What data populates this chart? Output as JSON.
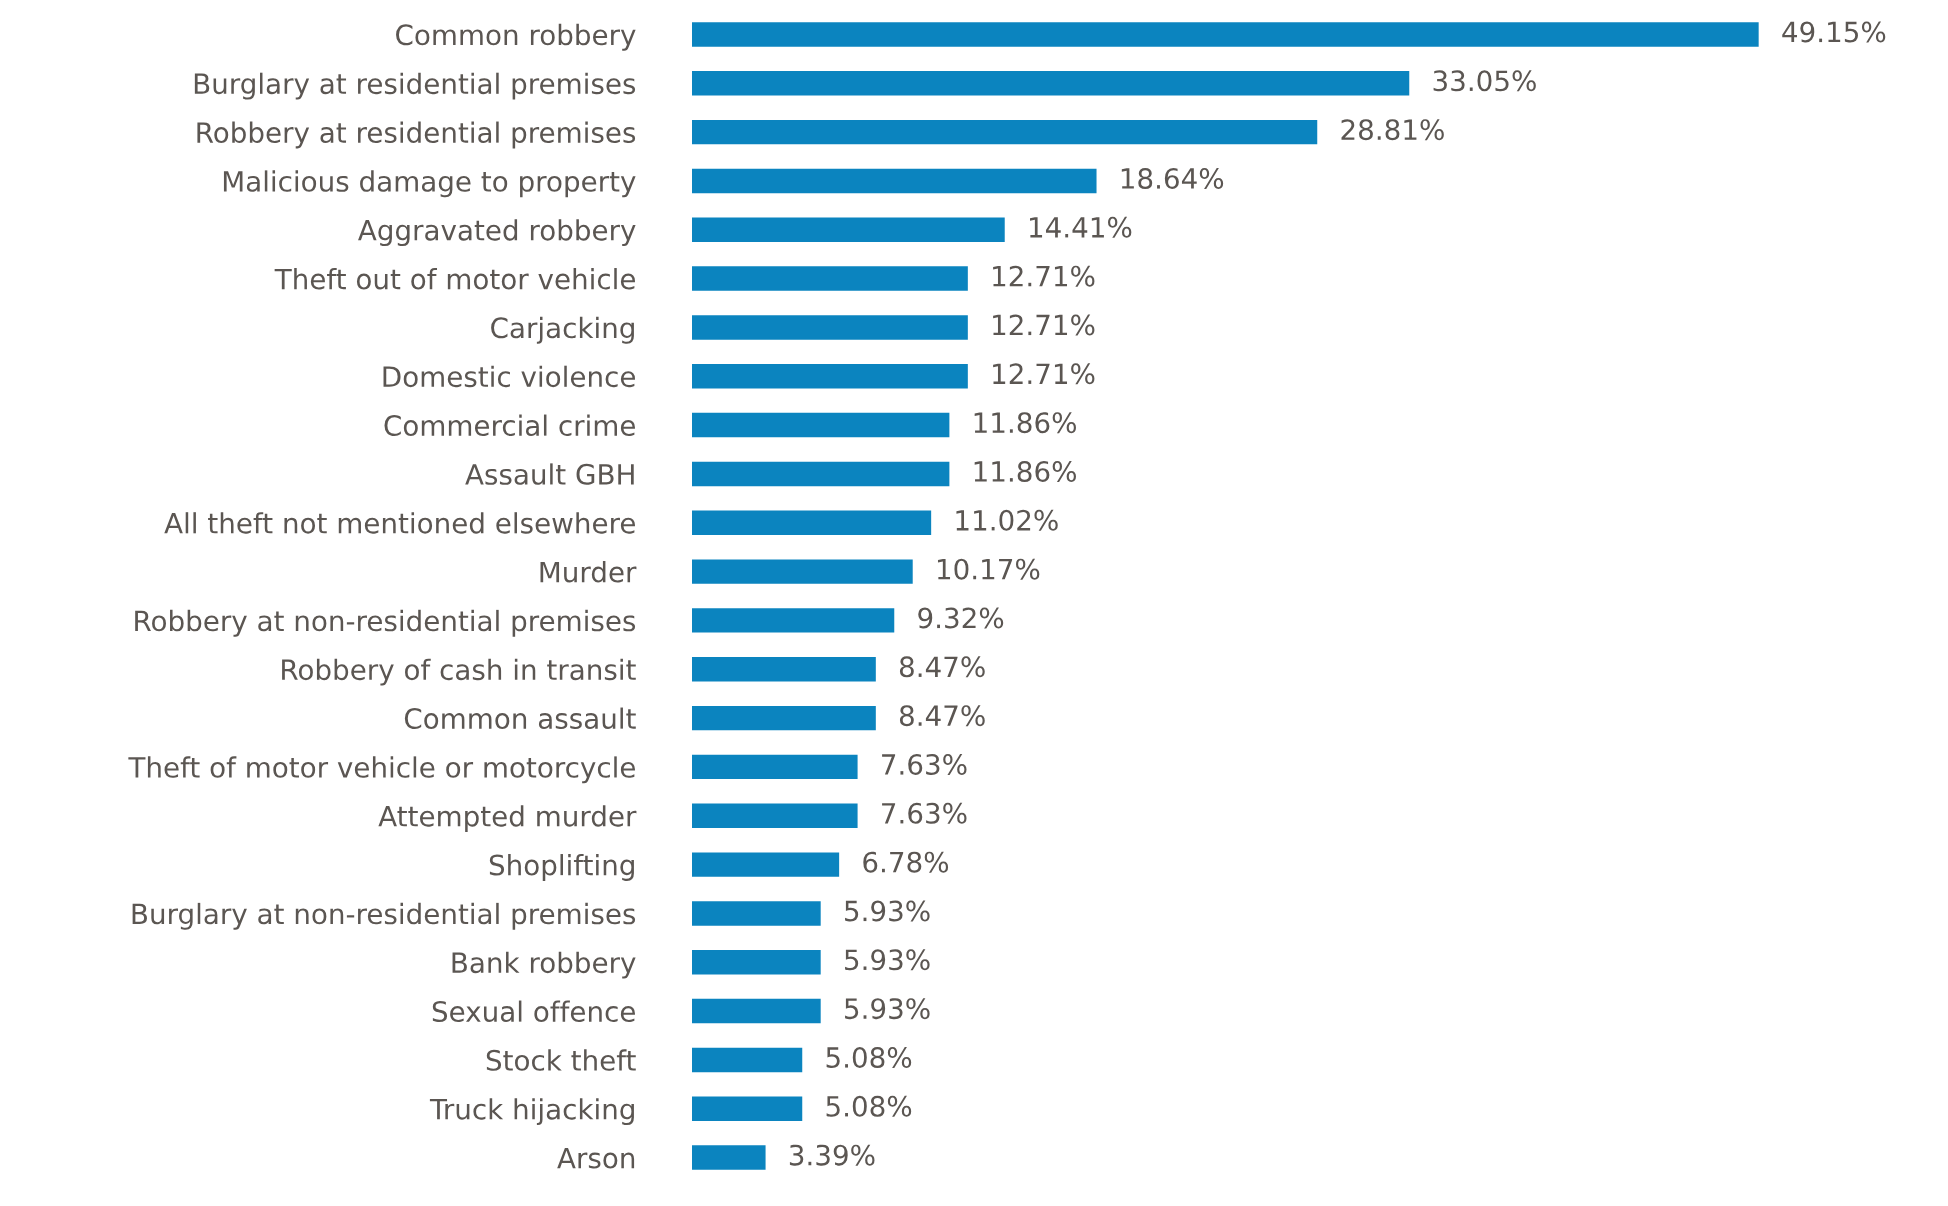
{
  "chart_data": {
    "type": "bar",
    "orientation": "horizontal",
    "tick_labels": "y",
    "color": "#0b84bf",
    "categories": [
      "Common robbery",
      "Burglary at residential premises",
      "Robbery at residential premises",
      "Malicious damage to property",
      "Aggravated robbery",
      "Theft out of motor vehicle",
      "Carjacking",
      "Domestic violence",
      "Commercial crime",
      "Assault GBH",
      "All theft not mentioned elsewhere",
      "Murder",
      "Robbery at non-residential premises",
      "Robbery of cash in transit",
      "Common assault",
      "Theft of motor vehicle or motorcycle",
      "Attempted murder",
      "Shoplifting",
      "Burglary at non-residential premises",
      "Bank robbery",
      "Sexual offence",
      "Stock theft",
      "Truck hijacking",
      "Arson"
    ],
    "values": [
      49.15,
      33.05,
      28.81,
      18.64,
      14.41,
      12.71,
      12.71,
      12.71,
      11.86,
      11.86,
      11.02,
      10.17,
      9.32,
      8.47,
      8.47,
      7.63,
      7.63,
      6.78,
      5.93,
      5.93,
      5.93,
      5.08,
      5.08,
      3.39
    ],
    "value_labels": [
      "49.15%",
      "33.05%",
      "28.81%",
      "18.64%",
      "14.41%",
      "12.71%",
      "12.71%",
      "12.71%",
      "11.86%",
      "11.86%",
      "11.02%",
      "10.17%",
      "9.32%",
      "8.47%",
      "8.47%",
      "7.63%",
      "7.63%",
      "6.78%",
      "5.93%",
      "5.93%",
      "5.93%",
      "5.08%",
      "5.08%",
      "3.39%"
    ]
  }
}
